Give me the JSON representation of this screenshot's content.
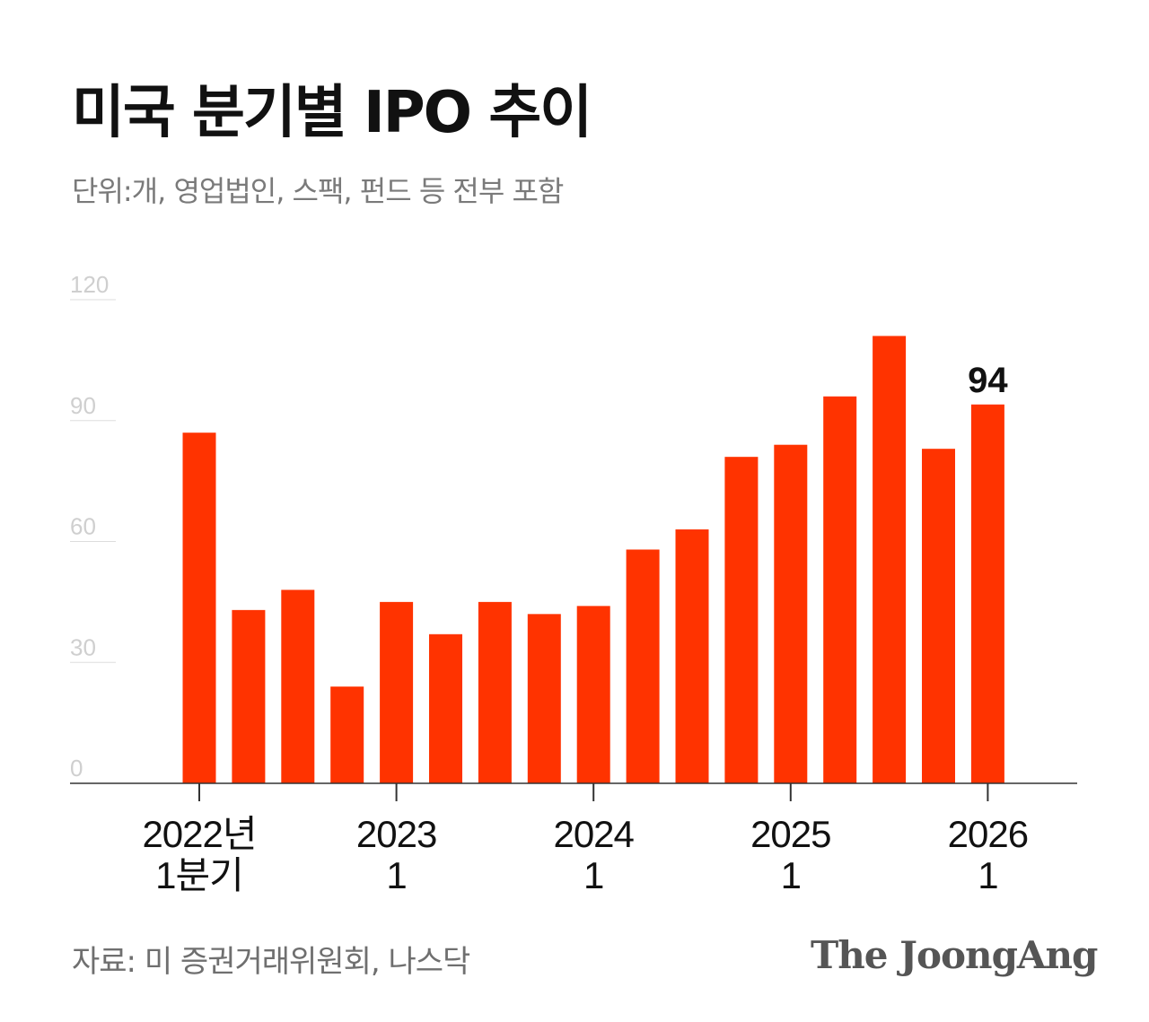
{
  "header": {
    "title": "미국 분기별 IPO 추이",
    "subtitle": "단위:개, 영업법인, 스팩, 펀드 등 전부 포함"
  },
  "footer": {
    "source": "자료: 미 증권거래위원회, 나스닥",
    "logo": "The JoongAng"
  },
  "colors": {
    "bar": "#ff3300",
    "grid": "#dddddd",
    "tick_label": "#cfcfcf",
    "axis": "#333333",
    "annotation": "#111111"
  },
  "chart_data": {
    "type": "bar",
    "title": "미국 분기별 IPO 추이",
    "xlabel": "",
    "ylabel": "",
    "ylim": [
      0,
      120
    ],
    "yticks": [
      0,
      30,
      60,
      90,
      120
    ],
    "grid": true,
    "categories": [
      "2022Q1",
      "2022Q2",
      "2022Q3",
      "2022Q4",
      "2023Q1",
      "2023Q2",
      "2023Q3",
      "2023Q4",
      "2024Q1",
      "2024Q2",
      "2024Q3",
      "2024Q4",
      "2025Q1",
      "2025Q2",
      "2025Q3",
      "2025Q4",
      "2026Q1"
    ],
    "values": [
      87,
      43,
      48,
      24,
      45,
      37,
      45,
      42,
      44,
      58,
      63,
      81,
      84,
      96,
      111,
      83,
      94
    ],
    "x_tick_labels": [
      {
        "index": 0,
        "line1": "2022년",
        "line2": "1분기"
      },
      {
        "index": 4,
        "line1": "2023",
        "line2": "1"
      },
      {
        "index": 8,
        "line1": "2024",
        "line2": "1"
      },
      {
        "index": 12,
        "line1": "2025",
        "line2": "1"
      },
      {
        "index": 16,
        "line1": "2026",
        "line2": "1"
      }
    ],
    "annotations": [
      {
        "index": 16,
        "text": "94"
      }
    ]
  }
}
